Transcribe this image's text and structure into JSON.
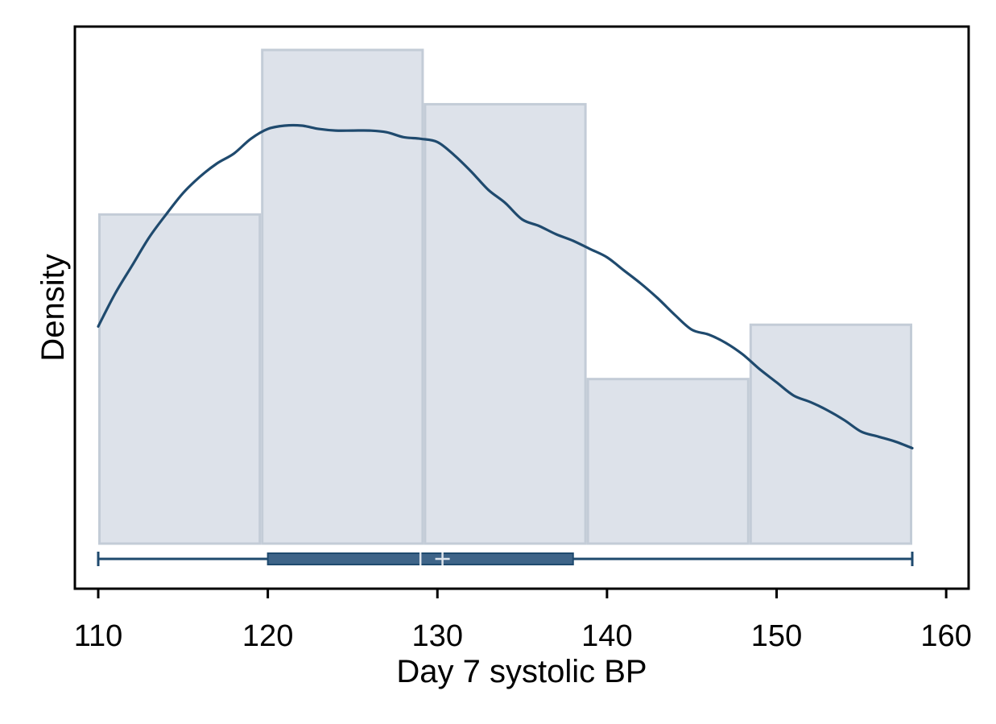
{
  "chart_data": {
    "type": "bar",
    "subtype": "histogram-with-kde-and-boxplot",
    "xlabel": "Day 7 systolic BP",
    "ylabel": "Density",
    "xlim": [
      108.5,
      160.5
    ],
    "x_ticks": [
      110,
      120,
      130,
      140,
      150,
      160
    ],
    "y_ticks_shown": false,
    "grid": false,
    "bins": [
      {
        "start": 110.0,
        "end": 119.6,
        "density": 0.02
      },
      {
        "start": 119.6,
        "end": 129.2,
        "density": 0.03
      },
      {
        "start": 129.2,
        "end": 138.8,
        "density": 0.0267
      },
      {
        "start": 138.8,
        "end": 148.4,
        "density": 0.01
      },
      {
        "start": 148.4,
        "end": 158.0,
        "density": 0.0133
      }
    ],
    "kde": {
      "x": [
        110,
        111,
        112,
        113,
        114,
        115,
        116,
        117,
        118,
        119,
        120,
        121,
        122,
        123,
        124,
        125,
        126,
        127,
        128,
        129,
        130,
        131,
        132,
        133,
        134,
        135,
        136,
        137,
        138,
        139,
        140,
        141,
        142,
        143,
        144,
        145,
        146,
        147,
        148,
        149,
        150,
        151,
        152,
        153,
        154,
        155,
        156,
        157,
        158
      ],
      "y": [
        0.0132,
        0.0152,
        0.0169,
        0.0186,
        0.02,
        0.0213,
        0.0223,
        0.0231,
        0.0237,
        0.0246,
        0.0252,
        0.0254,
        0.0254,
        0.0252,
        0.0251,
        0.0251,
        0.0251,
        0.025,
        0.0247,
        0.0246,
        0.0244,
        0.0236,
        0.0226,
        0.0215,
        0.0207,
        0.0197,
        0.0193,
        0.0188,
        0.0184,
        0.0179,
        0.0174,
        0.0166,
        0.0158,
        0.0149,
        0.0139,
        0.013,
        0.0127,
        0.0122,
        0.0115,
        0.0106,
        0.0098,
        0.009,
        0.0086,
        0.0081,
        0.0075,
        0.0068,
        0.0065,
        0.0062,
        0.0058
      ]
    },
    "boxplot": {
      "min": 110,
      "q1": 120,
      "median": 129,
      "mean": 130.3,
      "q3": 138,
      "max": 158
    },
    "ylim": [
      0,
      0.0315
    ],
    "colors": {
      "bar_fill": "#dde2ea",
      "bar_stroke": "#c3ccd7",
      "kde_line": "#1f4a6e",
      "box_fill": "#3e6488",
      "box_stroke": "#1f4a6e",
      "whisker": "#1f4a6e",
      "median_mark": "#dfe5ec",
      "axis": "#000000"
    }
  }
}
